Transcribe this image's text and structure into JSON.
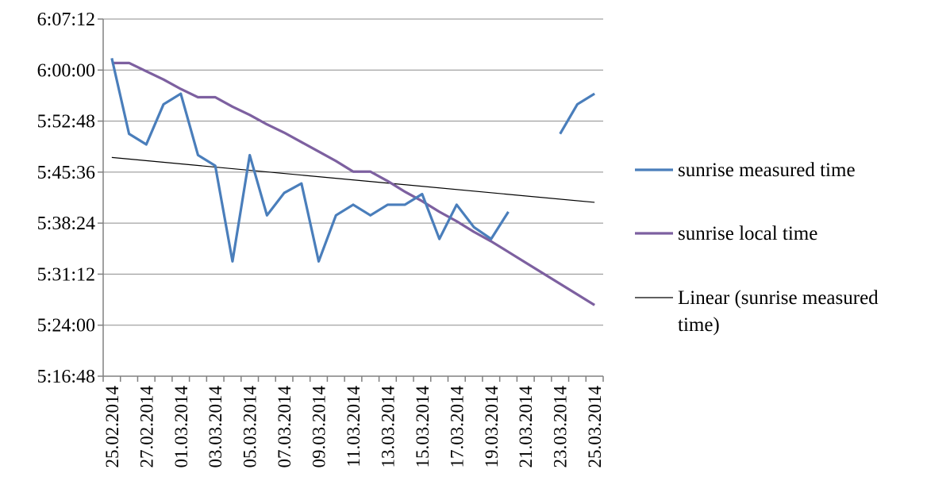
{
  "chart_data": {
    "type": "line",
    "title": "",
    "xlabel": "",
    "ylabel": "",
    "y_unit": "time (h:mm:ss)",
    "ylim": [
      "5:16:48",
      "6:07:12"
    ],
    "y_ticks": [
      "5:16:48",
      "5:24:00",
      "5:31:12",
      "5:38:24",
      "5:45:36",
      "5:52:48",
      "6:00:00",
      "6:07:12"
    ],
    "grid": true,
    "legend_position": "right",
    "x": [
      "25.02.2014",
      "26.02.2014",
      "27.02.2014",
      "28.02.2014",
      "01.03.2014",
      "02.03.2014",
      "03.03.2014",
      "04.03.2014",
      "05.03.2014",
      "06.03.2014",
      "07.03.2014",
      "08.03.2014",
      "09.03.2014",
      "10.03.2014",
      "11.03.2014",
      "12.03.2014",
      "13.03.2014",
      "14.03.2014",
      "15.03.2014",
      "16.03.2014",
      "17.03.2014",
      "18.03.2014",
      "19.03.2014",
      "20.03.2014",
      "21.03.2014",
      "22.03.2014",
      "23.03.2014",
      "24.03.2014",
      "25.03.2014"
    ],
    "x_tick_labels": [
      "25.02.2014",
      "27.02.2014",
      "01.03.2014",
      "03.03.2014",
      "05.03.2014",
      "07.03.2014",
      "09.03.2014",
      "11.03.2014",
      "13.03.2014",
      "15.03.2014",
      "17.03.2014",
      "19.03.2014",
      "21.03.2014",
      "23.03.2014",
      "25.03.2014"
    ],
    "series": [
      {
        "name": "sunrise measured time",
        "color": "#4a7ebb",
        "values": [
          "6:01:40",
          "5:51:00",
          "5:49:30",
          "5:55:10",
          "5:56:40",
          "5:48:00",
          "5:46:30",
          "5:33:00",
          "5:48:00",
          "5:39:30",
          "5:42:40",
          "5:44:00",
          "5:33:00",
          "5:39:30",
          "5:41:00",
          "5:39:30",
          "5:41:00",
          "5:41:00",
          "5:42:30",
          "5:36:10",
          "5:41:00",
          "5:37:50",
          "5:36:10",
          "5:40:00",
          null,
          null,
          "5:51:00",
          "5:55:10",
          "5:56:40"
        ]
      },
      {
        "name": "sunrise local time",
        "color": "#7d60a0",
        "values": [
          "6:01:00",
          "6:01:00",
          "5:59:50",
          "5:58:40",
          "5:57:20",
          "5:56:10",
          "5:56:10",
          "5:54:50",
          "5:53:40",
          "5:52:20",
          "5:51:10",
          "5:49:50",
          "5:48:30",
          "5:47:10",
          "5:45:40",
          "5:45:40",
          "5:44:20",
          "5:42:50",
          "5:41:30",
          "5:40:00",
          "5:38:40",
          "5:37:10",
          "5:35:50",
          "5:34:20",
          "5:32:50",
          "5:31:20",
          "5:29:50",
          "5:28:20",
          "5:26:50"
        ]
      },
      {
        "name": "Linear (sunrise measured time)",
        "color": "#000000",
        "trendline": true,
        "start": "5:47:40",
        "end": "5:41:20"
      }
    ]
  }
}
